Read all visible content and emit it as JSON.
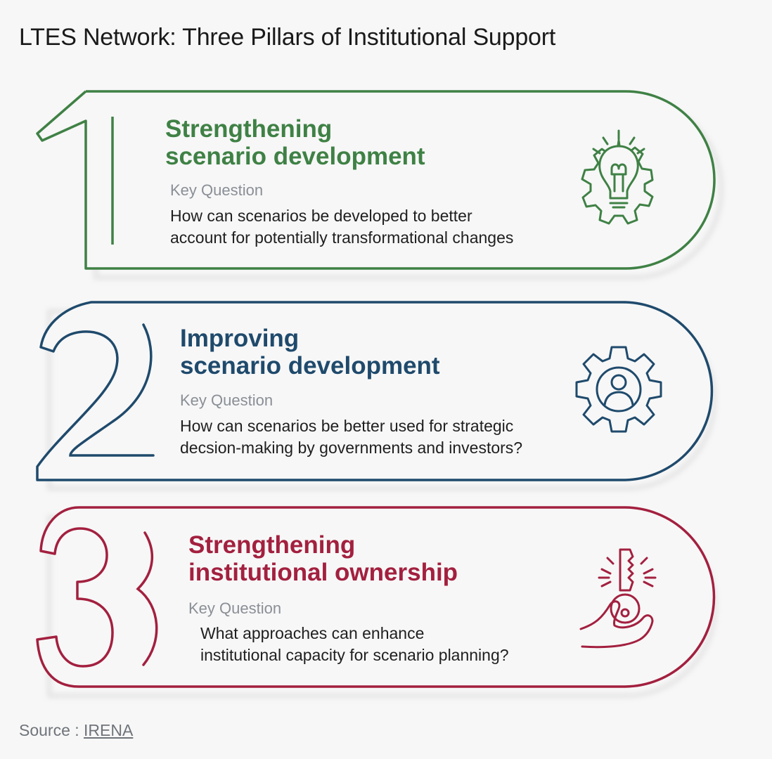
{
  "title": "LTES Network: Three Pillars of Institutional Support",
  "pillars": [
    {
      "number": "1",
      "heading_line1": "Strengthening",
      "heading_line2": "scenario development",
      "key_question_label": "Key Question",
      "question_line1": "How can scenarios be developed to better",
      "question_line2": "account for potentially transformational changes",
      "icon": "lightbulb-gear-icon",
      "color": "#3f8145"
    },
    {
      "number": "2",
      "heading_line1": "Improving",
      "heading_line2": "scenario development",
      "key_question_label": "Key Question",
      "question_line1": "How can scenarios be better used for strategic",
      "question_line2": "decsion-making by governments and investors?",
      "icon": "person-gear-icon",
      "color": "#1f4a6c"
    },
    {
      "number": "3",
      "heading_line1": "Strengthening",
      "heading_line2": "institutional ownership",
      "key_question_label": "Key Question",
      "question_line1": "What approaches can enhance",
      "question_line2": "institutional capacity for scenario planning?",
      "icon": "hand-key-icon",
      "color": "#a3203f"
    }
  ],
  "source": {
    "label": "Source :",
    "link_text": "IRENA"
  }
}
